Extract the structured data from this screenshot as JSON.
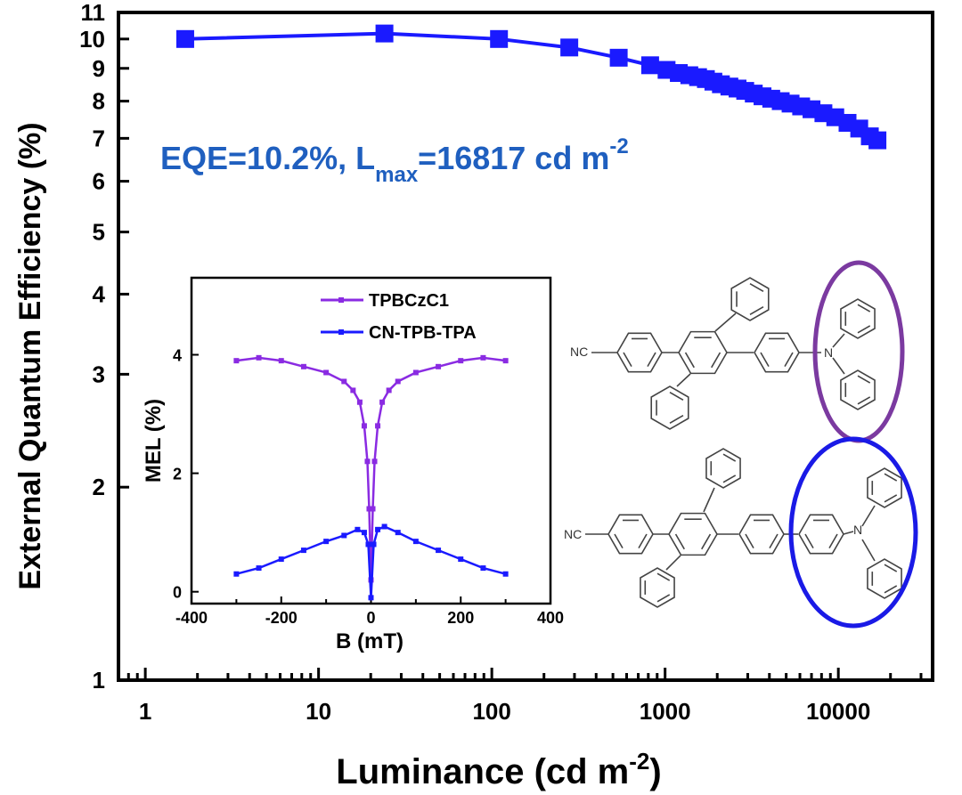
{
  "colors": {
    "main_series": "#1a1aff",
    "annotation": "#1f5fbf",
    "inset_series_1": "#8a2be2",
    "inset_series_2": "#1a1aff",
    "ellipse_top": "#7b3aa0",
    "ellipse_bottom": "#1a1ae6"
  },
  "chart_data": [
    {
      "type": "scatter",
      "xlabel": "Luminance (cd m",
      "xlabel_sup": "-2",
      "xlabel_close": ")",
      "ylabel": "External Quantum Efficiency (%)",
      "xscale": "log",
      "yscale": "log",
      "xlim": [
        0.7,
        35000
      ],
      "ylim": [
        1,
        11
      ],
      "xticks": [
        1,
        10,
        100,
        1000,
        10000
      ],
      "xtick_labels": [
        "1",
        "10",
        "100",
        "1000",
        "10000"
      ],
      "yticks": [
        1,
        2,
        3,
        4,
        5,
        6,
        7,
        8,
        9,
        10,
        11
      ],
      "ytick_labels": [
        "1",
        "2",
        "3",
        "4",
        "5",
        "6",
        "7",
        "8",
        "9",
        "10",
        "11"
      ],
      "grid": false,
      "marker": "square",
      "annotation": {
        "main": "EQE=10.2%, L",
        "sub": "max",
        "main2": "=16817 cd m",
        "sup": "-2"
      },
      "series": [
        {
          "x": [
            1.7,
            24,
            110,
            280,
            540,
            820,
            1020,
            1200,
            1380,
            1550,
            1720,
            1900,
            2100,
            2350,
            2620,
            2900,
            3250,
            3650,
            4100,
            4650,
            5300,
            6100,
            7000,
            8200,
            9600,
            11300,
            13200,
            15200,
            16817
          ],
          "y": [
            10.0,
            10.2,
            10.0,
            9.7,
            9.35,
            9.1,
            8.95,
            8.85,
            8.78,
            8.72,
            8.66,
            8.58,
            8.5,
            8.43,
            8.37,
            8.3,
            8.22,
            8.14,
            8.07,
            8.0,
            7.93,
            7.85,
            7.77,
            7.66,
            7.55,
            7.4,
            7.25,
            7.05,
            6.95
          ]
        }
      ]
    },
    {
      "type": "line",
      "xlabel": "B (mT)",
      "ylabel": "MEL (%)",
      "xlim": [
        -400,
        400
      ],
      "ylim": [
        -0.2,
        5.3
      ],
      "xticks": [
        -400,
        -200,
        0,
        200,
        400
      ],
      "xtick_labels": [
        "-400",
        "-200",
        "0",
        "200",
        "400"
      ],
      "yticks": [
        0,
        2,
        4
      ],
      "ytick_labels": [
        "0",
        "2",
        "4"
      ],
      "legend_position": "top-right",
      "series": [
        {
          "name": "TPBCzC1",
          "x": [
            -300,
            -250,
            -200,
            -150,
            -100,
            -60,
            -40,
            -25,
            -15,
            -8,
            -4,
            0,
            4,
            8,
            15,
            25,
            40,
            60,
            100,
            150,
            200,
            250,
            300
          ],
          "y": [
            3.9,
            3.95,
            3.9,
            3.8,
            3.7,
            3.55,
            3.4,
            3.2,
            2.8,
            2.2,
            1.4,
            0.2,
            1.4,
            2.2,
            2.8,
            3.2,
            3.4,
            3.55,
            3.7,
            3.8,
            3.9,
            3.95,
            3.9
          ]
        },
        {
          "name": "CN-TPB-TPA",
          "x": [
            -300,
            -250,
            -200,
            -150,
            -100,
            -60,
            -30,
            -15,
            -6,
            0,
            6,
            15,
            30,
            60,
            100,
            150,
            200,
            250,
            300
          ],
          "y": [
            0.3,
            0.4,
            0.55,
            0.7,
            0.85,
            0.95,
            1.05,
            1.0,
            0.8,
            -0.1,
            0.8,
            1.05,
            1.1,
            1.0,
            0.85,
            0.7,
            0.55,
            0.4,
            0.3
          ]
        }
      ]
    }
  ],
  "structures": {
    "top_label": "NC",
    "top_hetero": "N",
    "bottom_label": "NC",
    "bottom_hetero": "N"
  }
}
